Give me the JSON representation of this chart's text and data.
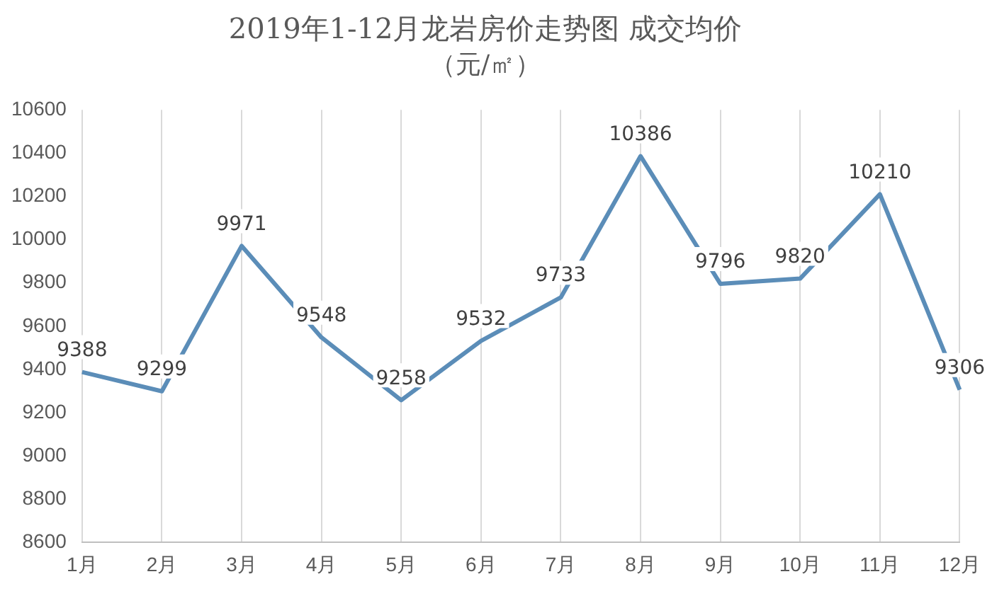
{
  "chart_data": {
    "type": "line",
    "title": "2019年1-12月龙岩房价走势图 成交均价",
    "subtitle": "（元/㎡）",
    "categories": [
      "1月",
      "2月",
      "3月",
      "4月",
      "5月",
      "6月",
      "7月",
      "8月",
      "9月",
      "10月",
      "11月",
      "12月"
    ],
    "series": [
      {
        "color": "#5b8db8",
        "values": [
          9388,
          9299,
          9971,
          9548,
          9258,
          9532,
          9733,
          10386,
          9796,
          9820,
          10210,
          9306
        ]
      }
    ],
    "ylim": [
      8600,
      10600
    ],
    "yticks": [
      8600,
      8800,
      9000,
      9200,
      9400,
      9600,
      9800,
      10000,
      10200,
      10400,
      10600
    ],
    "grid": "x",
    "legend": false,
    "marker": "none",
    "line_style": "solid",
    "data_labels": true
  }
}
